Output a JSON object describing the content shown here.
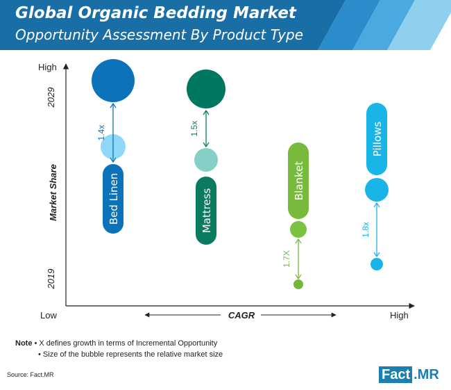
{
  "header": {
    "title": "Global Organic Bedding Market",
    "subtitle": "Opportunity Assessment By Product Type",
    "colors": [
      "#1a6ea6",
      "#2b8ccc",
      "#4aa9de",
      "#8fd0ee"
    ]
  },
  "chart_data": {
    "type": "bubble",
    "y_axis": {
      "label": "Market Share",
      "top_label": "High",
      "year_top": "2029",
      "year_bottom": "2019"
    },
    "x_axis": {
      "label": "CAGR",
      "left_label": "Low",
      "right_label": "High"
    },
    "grid": false,
    "series": [
      {
        "name": "Bed Linen",
        "color_2029": "#0c72b9",
        "color_2019": "#8fd8f7",
        "label_color": "#0c72b9",
        "growth": "1.4x",
        "size_2029": 1.0,
        "size_2019": 0.6
      },
      {
        "name": "Mattress",
        "color_2029": "#00785f",
        "color_2019": "#85cfc7",
        "label_color": "#0a7a61",
        "growth": "1.5x",
        "size_2029": 0.92,
        "size_2019": 0.55
      },
      {
        "name": "Blanket",
        "color_2029": "#7cc242",
        "color_2019": "#74b63a",
        "label_color": "#78bb3c",
        "growth": "1.7X",
        "size_2029": 0.4,
        "size_2019": 0.25
      },
      {
        "name": "Pillows",
        "color_2029": "#1ab5e8",
        "color_2019": "#1ab5e8",
        "label_color": "#1ab5e8",
        "growth": "1.8x",
        "size_2029": 0.55,
        "size_2019": 0.33
      }
    ]
  },
  "notes": {
    "note_label": "Note",
    "line1": " • X defines growth in terms of Incremental Opportunity",
    "line2": "• Size of the bubble represents the relative market size"
  },
  "source": "Source: Fact.MR",
  "logo": {
    "part1": "Fact",
    "part2": ".MR"
  }
}
